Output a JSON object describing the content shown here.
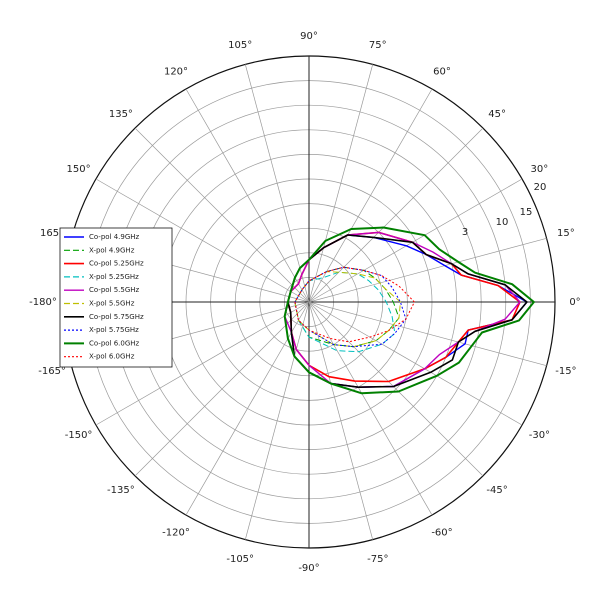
{
  "chart_data": {
    "type": "line",
    "polar": true,
    "title": "",
    "angle_unit": "degrees",
    "angular_ticks": [
      "90°",
      "75°",
      "60°",
      "45°",
      "30°",
      "15°",
      "0°",
      "-15°",
      "-30°",
      "-45°",
      "-60°",
      "-75°",
      "-90°",
      "-105°",
      "-120°",
      "-135°",
      "-150°",
      "-165°",
      "-180°",
      "165°",
      "150°",
      "135°",
      "120°",
      "105°"
    ],
    "radial_ticks": [
      "3",
      "10",
      "15",
      "20"
    ],
    "grid": true,
    "legend_position": "left",
    "series": [
      {
        "name": "Co-pol 4.9GHz",
        "color": "#0000ff",
        "dash": "solid",
        "width": 1.4,
        "points": [
          [
            -180,
            3
          ],
          [
            -150,
            3
          ],
          [
            -120,
            5
          ],
          [
            -105,
            8
          ],
          [
            -90,
            10
          ],
          [
            -75,
            12
          ],
          [
            -60,
            14
          ],
          [
            -45,
            17
          ],
          [
            -30,
            19
          ],
          [
            -22,
            21
          ],
          [
            -15,
            23
          ],
          [
            -10,
            23
          ],
          [
            -5,
            29
          ],
          [
            0,
            31
          ],
          [
            5,
            27
          ],
          [
            10,
            22
          ],
          [
            15,
            20
          ],
          [
            22,
            18
          ],
          [
            30,
            16
          ],
          [
            45,
            13
          ],
          [
            60,
            11
          ],
          [
            75,
            8
          ],
          [
            90,
            6
          ],
          [
            105,
            5
          ],
          [
            120,
            4
          ],
          [
            150,
            3
          ],
          [
            180,
            3
          ]
        ]
      },
      {
        "name": "X-pol 4.9GHz",
        "color": "#00a000",
        "dash": "6,3",
        "width": 1.0,
        "points": [
          [
            -180,
            2
          ],
          [
            -120,
            3
          ],
          [
            -90,
            5
          ],
          [
            -60,
            7
          ],
          [
            -45,
            9
          ],
          [
            -30,
            11
          ],
          [
            -20,
            12
          ],
          [
            -10,
            13
          ],
          [
            0,
            12
          ],
          [
            10,
            11
          ],
          [
            20,
            10
          ],
          [
            30,
            9
          ],
          [
            45,
            7
          ],
          [
            60,
            5
          ],
          [
            90,
            3
          ],
          [
            120,
            2
          ],
          [
            180,
            2
          ]
        ]
      },
      {
        "name": "Co-pol 5.25GHz",
        "color": "#ff0000",
        "dash": "solid",
        "width": 1.6,
        "points": [
          [
            -180,
            3
          ],
          [
            -150,
            3
          ],
          [
            -120,
            5
          ],
          [
            -105,
            7
          ],
          [
            -90,
            9
          ],
          [
            -75,
            11
          ],
          [
            -60,
            13
          ],
          [
            -45,
            16
          ],
          [
            -30,
            19
          ],
          [
            -22,
            21
          ],
          [
            -15,
            22
          ],
          [
            -10,
            23
          ],
          [
            -5,
            29
          ],
          [
            0,
            30
          ],
          [
            5,
            27
          ],
          [
            10,
            22
          ],
          [
            15,
            21
          ],
          [
            22,
            18
          ],
          [
            30,
            17
          ],
          [
            45,
            14
          ],
          [
            60,
            11
          ],
          [
            75,
            8
          ],
          [
            90,
            6
          ],
          [
            105,
            4
          ],
          [
            120,
            3
          ],
          [
            150,
            3
          ],
          [
            180,
            3
          ]
        ]
      },
      {
        "name": "X-pol 5.25GHz",
        "color": "#00bfbf",
        "dash": "6,3",
        "width": 1.0,
        "points": [
          [
            -180,
            2
          ],
          [
            -120,
            3
          ],
          [
            -90,
            5
          ],
          [
            -60,
            8
          ],
          [
            -45,
            10
          ],
          [
            -30,
            12
          ],
          [
            -20,
            13
          ],
          [
            -10,
            12
          ],
          [
            0,
            11
          ],
          [
            10,
            10
          ],
          [
            20,
            9
          ],
          [
            30,
            8
          ],
          [
            45,
            6
          ],
          [
            60,
            4
          ],
          [
            90,
            3
          ],
          [
            120,
            2
          ],
          [
            180,
            2
          ]
        ]
      },
      {
        "name": "Co-pol 5.5GHz",
        "color": "#bf00bf",
        "dash": "solid",
        "width": 1.4,
        "points": [
          [
            -180,
            3
          ],
          [
            -150,
            4
          ],
          [
            -120,
            5
          ],
          [
            -105,
            7
          ],
          [
            -90,
            9
          ],
          [
            -75,
            12
          ],
          [
            -60,
            14
          ],
          [
            -45,
            17
          ],
          [
            -30,
            19
          ],
          [
            -22,
            20
          ],
          [
            -15,
            22
          ],
          [
            -10,
            24
          ],
          [
            -5,
            28
          ],
          [
            0,
            30
          ],
          [
            5,
            28
          ],
          [
            10,
            23
          ],
          [
            15,
            21
          ],
          [
            22,
            19
          ],
          [
            30,
            17
          ],
          [
            45,
            14
          ],
          [
            60,
            11
          ],
          [
            75,
            8
          ],
          [
            90,
            6
          ],
          [
            105,
            4
          ],
          [
            120,
            3
          ],
          [
            150,
            3
          ],
          [
            180,
            3
          ]
        ]
      },
      {
        "name": "X-pol 5.5GHz",
        "color": "#bfbf00",
        "dash": "6,3",
        "width": 1.0,
        "points": [
          [
            -180,
            2
          ],
          [
            -120,
            3
          ],
          [
            -90,
            4
          ],
          [
            -60,
            7
          ],
          [
            -45,
            9
          ],
          [
            -30,
            11
          ],
          [
            -20,
            12
          ],
          [
            -10,
            13
          ],
          [
            0,
            13
          ],
          [
            10,
            11
          ],
          [
            20,
            10
          ],
          [
            30,
            8
          ],
          [
            45,
            6
          ],
          [
            60,
            5
          ],
          [
            90,
            3
          ],
          [
            120,
            2
          ],
          [
            180,
            2
          ]
        ]
      },
      {
        "name": "Co-pol 5.75GHz",
        "color": "#000000",
        "dash": "solid",
        "width": 1.6,
        "points": [
          [
            -180,
            3
          ],
          [
            -150,
            3
          ],
          [
            -120,
            5
          ],
          [
            -105,
            8
          ],
          [
            -90,
            10
          ],
          [
            -75,
            12
          ],
          [
            -60,
            14
          ],
          [
            -45,
            17
          ],
          [
            -30,
            20
          ],
          [
            -22,
            22
          ],
          [
            -15,
            22
          ],
          [
            -10,
            24
          ],
          [
            -5,
            29
          ],
          [
            0,
            31
          ],
          [
            5,
            28
          ],
          [
            10,
            23
          ],
          [
            15,
            21
          ],
          [
            22,
            18
          ],
          [
            30,
            17
          ],
          [
            45,
            13
          ],
          [
            60,
            11
          ],
          [
            75,
            8
          ],
          [
            90,
            6
          ],
          [
            105,
            5
          ],
          [
            120,
            4
          ],
          [
            150,
            3
          ],
          [
            180,
            3
          ]
        ]
      },
      {
        "name": "X-pol 5.75GHz",
        "color": "#0000ff",
        "dash": "2,2",
        "width": 1.0,
        "points": [
          [
            -180,
            2
          ],
          [
            -120,
            3
          ],
          [
            -90,
            4
          ],
          [
            -60,
            7
          ],
          [
            -45,
            9
          ],
          [
            -30,
            12
          ],
          [
            -20,
            13
          ],
          [
            -10,
            14
          ],
          [
            0,
            13
          ],
          [
            10,
            12
          ],
          [
            20,
            11
          ],
          [
            30,
            9
          ],
          [
            45,
            7
          ],
          [
            60,
            5
          ],
          [
            90,
            3
          ],
          [
            120,
            2
          ],
          [
            180,
            2
          ]
        ]
      },
      {
        "name": "Co-pol 6.0GHz",
        "color": "#008000",
        "dash": "solid",
        "width": 2.0,
        "points": [
          [
            -180,
            3
          ],
          [
            -150,
            4
          ],
          [
            -120,
            6
          ],
          [
            -105,
            8
          ],
          [
            -90,
            10
          ],
          [
            -75,
            12
          ],
          [
            -60,
            15
          ],
          [
            -45,
            18
          ],
          [
            -30,
            21
          ],
          [
            -22,
            23
          ],
          [
            -15,
            24
          ],
          [
            -10,
            25
          ],
          [
            -5,
            30
          ],
          [
            0,
            32
          ],
          [
            5,
            29
          ],
          [
            10,
            24
          ],
          [
            15,
            22
          ],
          [
            22,
            20
          ],
          [
            30,
            19
          ],
          [
            45,
            15
          ],
          [
            60,
            12
          ],
          [
            75,
            9
          ],
          [
            90,
            6
          ],
          [
            105,
            5
          ],
          [
            120,
            4
          ],
          [
            150,
            3
          ],
          [
            180,
            3
          ]
        ]
      },
      {
        "name": "X-pol 6.0GHz",
        "color": "#ff0000",
        "dash": "2,2",
        "width": 1.0,
        "points": [
          [
            -180,
            2
          ],
          [
            -120,
            3
          ],
          [
            -90,
            4
          ],
          [
            -60,
            6
          ],
          [
            -45,
            8
          ],
          [
            -30,
            10
          ],
          [
            -20,
            12
          ],
          [
            -10,
            14
          ],
          [
            0,
            15
          ],
          [
            10,
            13
          ],
          [
            20,
            11
          ],
          [
            30,
            9
          ],
          [
            45,
            7
          ],
          [
            60,
            5
          ],
          [
            90,
            3
          ],
          [
            120,
            2
          ],
          [
            180,
            2
          ]
        ]
      }
    ]
  }
}
